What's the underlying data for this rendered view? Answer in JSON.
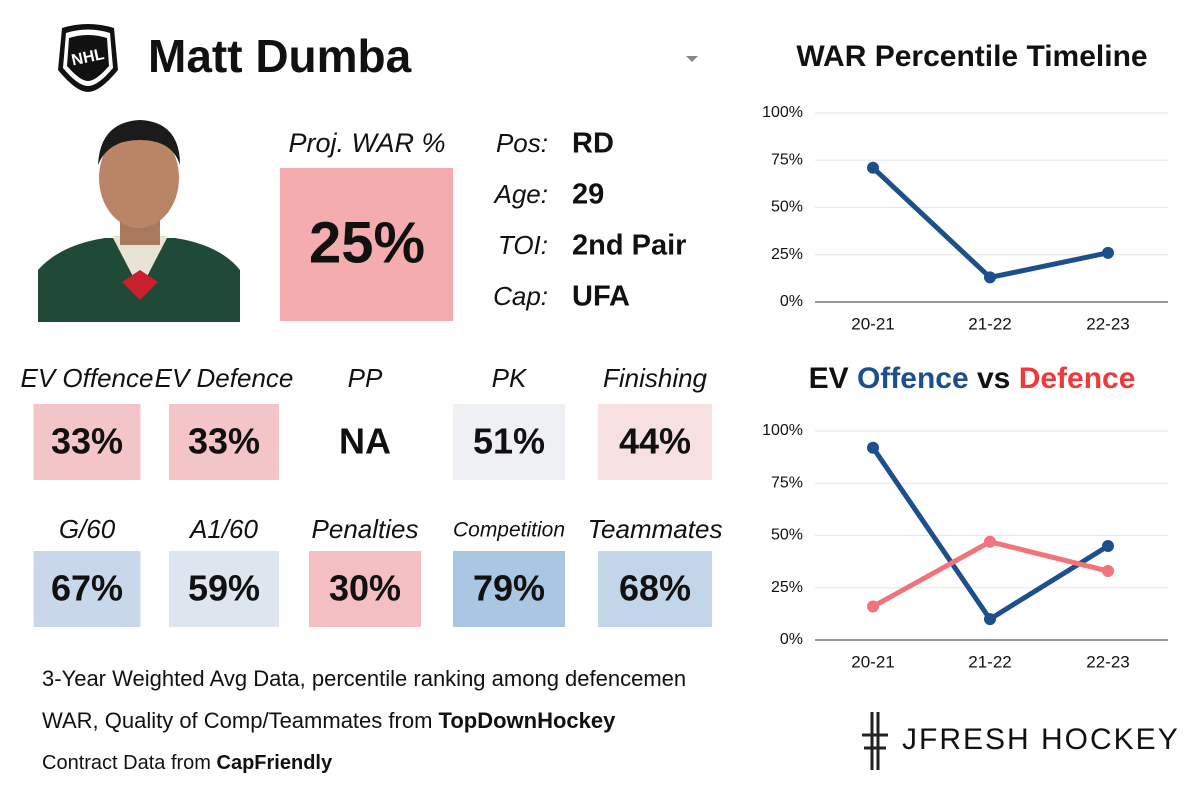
{
  "logo": "NHL",
  "header": {
    "name": "Matt Dumba"
  },
  "projection": {
    "label": "Proj. WAR %",
    "value": "25%"
  },
  "info": [
    {
      "label": "Pos:",
      "value": "RD"
    },
    {
      "label": "Age:",
      "value": "29"
    },
    {
      "label": "TOI:",
      "value": "2nd Pair"
    },
    {
      "label": "Cap:",
      "value": "UFA"
    }
  ],
  "tiles": [
    [
      {
        "label": "EV Offence",
        "value": "33%",
        "color": "#f4c5c8"
      },
      {
        "label": "EV Defence",
        "value": "33%",
        "color": "#f4c5c8"
      },
      {
        "label": "PP",
        "value": "NA",
        "color": "#ffffff"
      },
      {
        "label": "PK",
        "value": "51%",
        "color": "#eef0f3"
      },
      {
        "label": "Finishing",
        "value": "44%",
        "color": "#f6e0e2"
      }
    ],
    [
      {
        "label": "G/60",
        "value": "67%",
        "color": "#c8d8ea"
      },
      {
        "label": "A1/60",
        "value": "59%",
        "color": "#dde6ef"
      },
      {
        "label": "Penalties",
        "value": "30%",
        "color": "#f4bfc2"
      },
      {
        "label": "Competition",
        "value": "79%",
        "color": "#a9c6e2"
      },
      {
        "label": "Teammates",
        "value": "68%",
        "color": "#c3d6e9"
      }
    ]
  ],
  "footer": {
    "line1": "3-Year Weighted Avg Data, percentile ranking among defencemen",
    "line2": {
      "text": "WAR, Quality of Comp/Teammates from ",
      "source": "TopDownHockey"
    },
    "line3": {
      "text": "Contract Data from ",
      "source": "CapFriendly"
    }
  },
  "brand": "JFRESH HOCKEY",
  "chart_data": [
    {
      "type": "line",
      "title": "WAR Percentile Timeline",
      "categories": [
        "20-21",
        "21-22",
        "22-23"
      ],
      "series": [
        {
          "color": "#1d4f8f",
          "values": [
            71,
            13,
            26
          ]
        }
      ],
      "ylim": [
        0,
        100
      ],
      "yticks": [
        {
          "value": 0,
          "label": "0%"
        },
        {
          "value": 25,
          "label": "25%"
        },
        {
          "value": 50,
          "label": "50%"
        },
        {
          "value": 75,
          "label": "75%"
        },
        {
          "value": 100,
          "label": "100%"
        }
      ],
      "grid": true
    },
    {
      "type": "line",
      "title_prefix": "EV",
      "title_joiner": "vs",
      "categories": [
        "20-21",
        "21-22",
        "22-23"
      ],
      "series": [
        {
          "name": "Offence",
          "color": "#1d4f8f",
          "values": [
            92,
            10,
            45
          ]
        },
        {
          "name": "Defence",
          "color": "#f2737a",
          "values": [
            16,
            47,
            33
          ]
        }
      ],
      "ylim": [
        0,
        100
      ],
      "yticks": [
        {
          "value": 0,
          "label": "0%"
        },
        {
          "value": 25,
          "label": "25%"
        },
        {
          "value": 50,
          "label": "50%"
        },
        {
          "value": 75,
          "label": "75%"
        },
        {
          "value": 100,
          "label": "100%"
        }
      ],
      "grid": true
    }
  ]
}
